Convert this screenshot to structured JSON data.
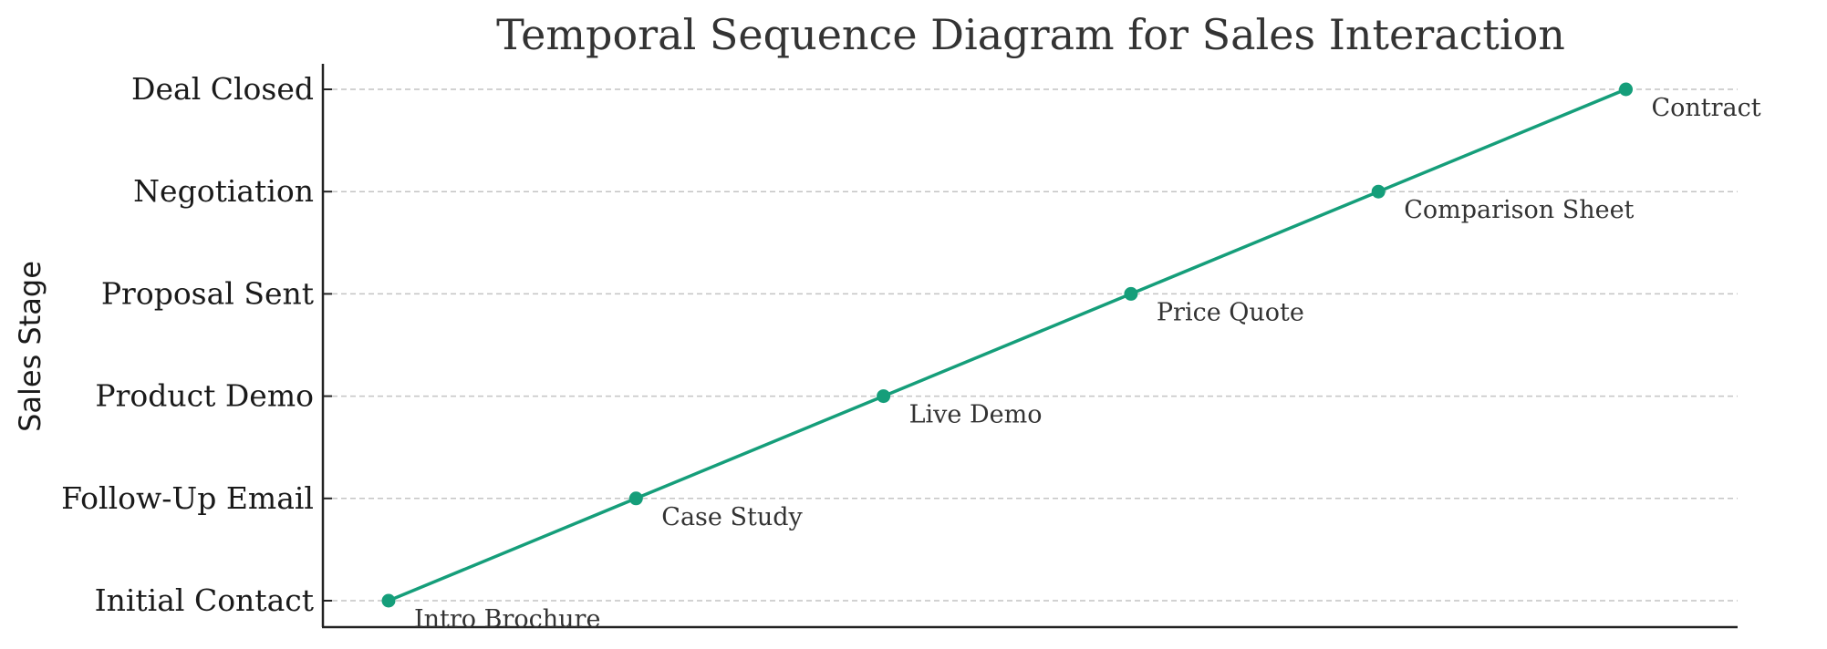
{
  "chart_data": {
    "type": "line",
    "title": "Temporal Sequence Diagram for Sales Interaction",
    "xlabel": "",
    "ylabel": "Sales Stage",
    "categories": [
      "Initial Contact",
      "Follow-Up Email",
      "Product Demo",
      "Proposal Sent",
      "Negotiation",
      "Deal Closed"
    ],
    "x": [
      1,
      2,
      3,
      4,
      5,
      6
    ],
    "y": [
      "Initial Contact",
      "Follow-Up Email",
      "Product Demo",
      "Proposal Sent",
      "Negotiation",
      "Deal Closed"
    ],
    "annotations": [
      "Intro Brochure",
      "Case Study",
      "Live Demo",
      "Price Quote",
      "Comparison Sheet",
      "Contract"
    ],
    "grid": "horizontal dashed",
    "legend": "none",
    "colors": {
      "line": "#159e7a",
      "marker": "#159e7a"
    }
  }
}
